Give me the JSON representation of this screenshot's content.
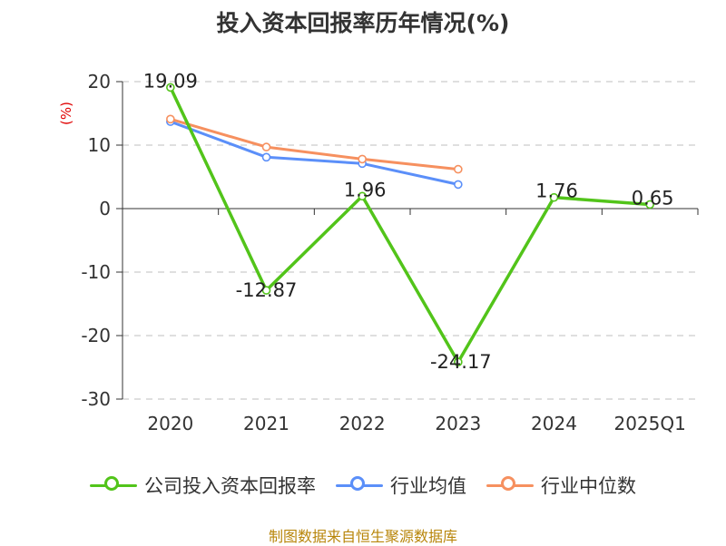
{
  "chart_data": {
    "type": "line",
    "title": "投入资本回报率历年情况(%)",
    "ylabel": "(%)",
    "categories": [
      "2020",
      "2021",
      "2022",
      "2023",
      "2024",
      "2025Q1"
    ],
    "ylim": [
      -30,
      20
    ],
    "yticks": [
      20,
      10,
      0,
      -10,
      -20,
      -30
    ],
    "grid": true,
    "legend_position": "bottom",
    "series": [
      {
        "name": "公司投入资本回报率",
        "color": "#52c41a",
        "show_labels": true,
        "values": [
          19.09,
          -12.87,
          1.96,
          -24.17,
          1.76,
          0.65
        ]
      },
      {
        "name": "行业均值",
        "color": "#5b8ff9",
        "show_labels": false,
        "values": [
          13.7,
          8.1,
          7.1,
          3.8,
          null,
          null
        ]
      },
      {
        "name": "行业中位数",
        "color": "#f6905f",
        "show_labels": false,
        "values": [
          14.1,
          9.7,
          7.8,
          6.2,
          null,
          null
        ]
      }
    ],
    "labels": [
      "19.09",
      "-12.87",
      "1.96",
      "-24.17",
      "1.76",
      "0.65"
    ]
  },
  "source": "制图数据来自恒生聚源数据库"
}
